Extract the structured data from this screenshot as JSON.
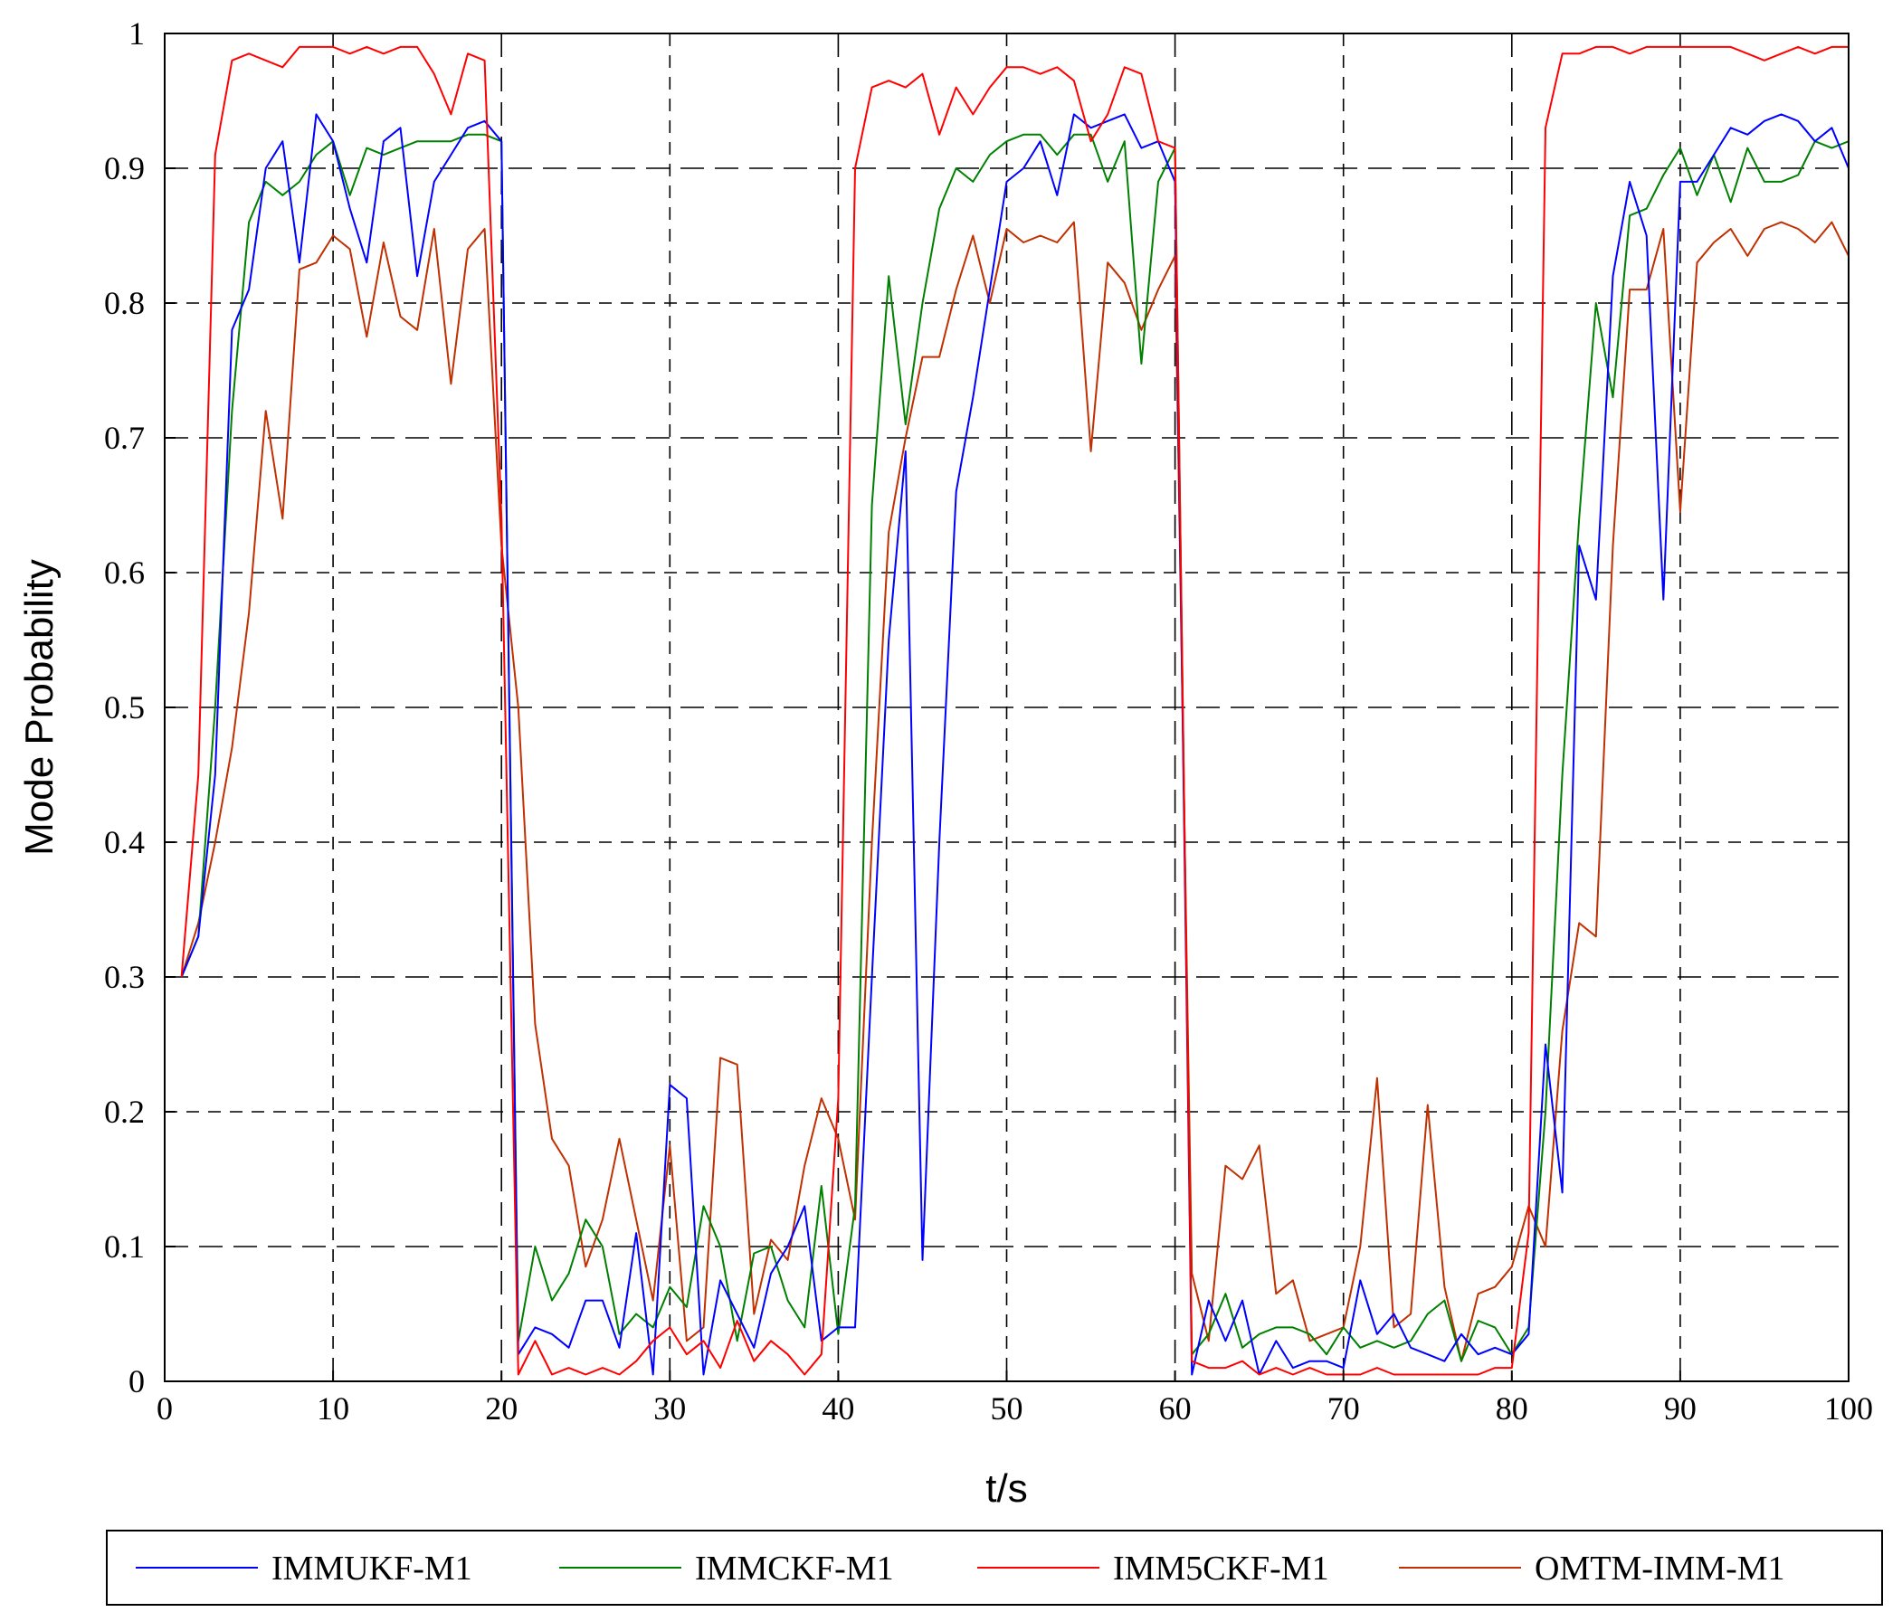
{
  "chart_data": {
    "type": "line",
    "title": "",
    "xlabel": "t/s",
    "ylabel": "Mode Probability",
    "xlim": [
      0,
      100
    ],
    "ylim": [
      0,
      1
    ],
    "xticks": [
      0,
      10,
      20,
      30,
      40,
      50,
      60,
      70,
      80,
      90,
      100
    ],
    "yticks": [
      0,
      0.1,
      0.2,
      0.3,
      0.4,
      0.5,
      0.6,
      0.7,
      0.8,
      0.9,
      1
    ],
    "xtick_labels": [
      "0",
      "10",
      "20",
      "30",
      "40",
      "50",
      "60",
      "70",
      "80",
      "90",
      "100"
    ],
    "ytick_labels": [
      "0",
      "0.1",
      "0.2",
      "0.3",
      "0.4",
      "0.5",
      "0.6",
      "0.7",
      "0.8",
      "0.9",
      "1"
    ],
    "grid": true,
    "legend_position": "bottom",
    "x": [
      1,
      2,
      3,
      4,
      5,
      6,
      7,
      8,
      9,
      10,
      11,
      12,
      13,
      14,
      15,
      16,
      17,
      18,
      19,
      20,
      21,
      22,
      23,
      24,
      25,
      26,
      27,
      28,
      29,
      30,
      31,
      32,
      33,
      34,
      35,
      36,
      37,
      38,
      39,
      40,
      41,
      42,
      43,
      44,
      45,
      46,
      47,
      48,
      49,
      50,
      51,
      52,
      53,
      54,
      55,
      56,
      57,
      58,
      59,
      60,
      61,
      62,
      63,
      64,
      65,
      66,
      67,
      68,
      69,
      70,
      71,
      72,
      73,
      74,
      75,
      76,
      77,
      78,
      79,
      80,
      81,
      82,
      83,
      84,
      85,
      86,
      87,
      88,
      89,
      90,
      91,
      92,
      93,
      94,
      95,
      96,
      97,
      98,
      99,
      100
    ],
    "series": [
      {
        "name": "IMMUKF-M1",
        "color": "#0000ff",
        "values": [
          0.3,
          0.33,
          0.45,
          0.78,
          0.81,
          0.9,
          0.92,
          0.83,
          0.94,
          0.92,
          0.87,
          0.83,
          0.92,
          0.93,
          0.82,
          0.89,
          0.91,
          0.93,
          0.935,
          0.92,
          0.02,
          0.04,
          0.035,
          0.025,
          0.06,
          0.06,
          0.025,
          0.11,
          0.005,
          0.22,
          0.21,
          0.005,
          0.075,
          0.05,
          0.025,
          0.08,
          0.1,
          0.13,
          0.03,
          0.04,
          0.04,
          0.3,
          0.55,
          0.69,
          0.09,
          0.4,
          0.66,
          0.73,
          0.81,
          0.89,
          0.9,
          0.92,
          0.88,
          0.94,
          0.93,
          0.935,
          0.94,
          0.915,
          0.92,
          0.89,
          0.005,
          0.06,
          0.03,
          0.06,
          0.005,
          0.03,
          0.01,
          0.015,
          0.015,
          0.01,
          0.075,
          0.035,
          0.05,
          0.025,
          0.02,
          0.015,
          0.035,
          0.02,
          0.025,
          0.02,
          0.035,
          0.25,
          0.14,
          0.62,
          0.58,
          0.82,
          0.89,
          0.85,
          0.58,
          0.89,
          0.89,
          0.91,
          0.93,
          0.925,
          0.935,
          0.94,
          0.935,
          0.92,
          0.93,
          0.9
        ]
      },
      {
        "name": "IMMCKF-M1",
        "color": "#008000",
        "values": [
          0.3,
          0.33,
          0.5,
          0.72,
          0.86,
          0.89,
          0.88,
          0.89,
          0.91,
          0.92,
          0.88,
          0.915,
          0.91,
          0.915,
          0.92,
          0.92,
          0.92,
          0.925,
          0.925,
          0.92,
          0.03,
          0.1,
          0.06,
          0.08,
          0.12,
          0.1,
          0.035,
          0.05,
          0.04,
          0.07,
          0.055,
          0.13,
          0.1,
          0.03,
          0.095,
          0.1,
          0.06,
          0.04,
          0.145,
          0.035,
          0.13,
          0.65,
          0.82,
          0.71,
          0.8,
          0.87,
          0.9,
          0.89,
          0.91,
          0.92,
          0.925,
          0.925,
          0.91,
          0.925,
          0.925,
          0.89,
          0.92,
          0.755,
          0.89,
          0.915,
          0.02,
          0.035,
          0.065,
          0.025,
          0.035,
          0.04,
          0.04,
          0.035,
          0.02,
          0.04,
          0.025,
          0.03,
          0.025,
          0.03,
          0.05,
          0.06,
          0.015,
          0.045,
          0.04,
          0.02,
          0.04,
          0.2,
          0.45,
          0.64,
          0.8,
          0.73,
          0.865,
          0.87,
          0.895,
          0.915,
          0.88,
          0.91,
          0.875,
          0.915,
          0.89,
          0.89,
          0.895,
          0.92,
          0.915,
          0.92
        ]
      },
      {
        "name": "IMM5CKF-M1",
        "color": "#ff0000",
        "values": [
          0.3,
          0.45,
          0.91,
          0.98,
          0.985,
          0.98,
          0.975,
          0.99,
          0.99,
          0.99,
          0.985,
          0.99,
          0.985,
          0.99,
          0.99,
          0.97,
          0.94,
          0.985,
          0.98,
          0.64,
          0.005,
          0.03,
          0.005,
          0.01,
          0.005,
          0.01,
          0.005,
          0.015,
          0.03,
          0.04,
          0.02,
          0.03,
          0.01,
          0.045,
          0.015,
          0.03,
          0.02,
          0.005,
          0.02,
          0.21,
          0.9,
          0.96,
          0.965,
          0.96,
          0.97,
          0.925,
          0.96,
          0.94,
          0.96,
          0.975,
          0.975,
          0.97,
          0.975,
          0.965,
          0.92,
          0.94,
          0.975,
          0.97,
          0.92,
          0.915,
          0.015,
          0.01,
          0.01,
          0.015,
          0.005,
          0.01,
          0.005,
          0.01,
          0.005,
          0.005,
          0.005,
          0.01,
          0.005,
          0.005,
          0.005,
          0.005,
          0.005,
          0.005,
          0.01,
          0.01,
          0.11,
          0.93,
          0.985,
          0.985,
          0.99,
          0.99,
          0.985,
          0.99,
          0.99,
          0.99,
          0.99,
          0.99,
          0.99,
          0.985,
          0.98,
          0.985,
          0.99,
          0.985,
          0.99,
          0.99
        ]
      },
      {
        "name": "OMTM-IMM-M1",
        "color": "#c03000",
        "values": [
          0.3,
          0.34,
          0.4,
          0.47,
          0.57,
          0.72,
          0.64,
          0.825,
          0.83,
          0.85,
          0.84,
          0.775,
          0.845,
          0.79,
          0.78,
          0.855,
          0.74,
          0.84,
          0.855,
          0.62,
          0.5,
          0.265,
          0.18,
          0.16,
          0.085,
          0.12,
          0.18,
          0.12,
          0.06,
          0.175,
          0.03,
          0.04,
          0.24,
          0.235,
          0.05,
          0.105,
          0.09,
          0.16,
          0.21,
          0.18,
          0.12,
          0.4,
          0.63,
          0.7,
          0.76,
          0.76,
          0.81,
          0.85,
          0.8,
          0.855,
          0.845,
          0.85,
          0.845,
          0.86,
          0.69,
          0.83,
          0.815,
          0.78,
          0.81,
          0.835,
          0.08,
          0.03,
          0.16,
          0.15,
          0.175,
          0.065,
          0.075,
          0.03,
          0.035,
          0.04,
          0.1,
          0.225,
          0.04,
          0.05,
          0.205,
          0.07,
          0.015,
          0.065,
          0.07,
          0.085,
          0.13,
          0.1,
          0.26,
          0.34,
          0.33,
          0.62,
          0.81,
          0.81,
          0.855,
          0.645,
          0.83,
          0.845,
          0.855,
          0.835,
          0.855,
          0.86,
          0.855,
          0.845,
          0.86,
          0.835
        ]
      }
    ]
  }
}
